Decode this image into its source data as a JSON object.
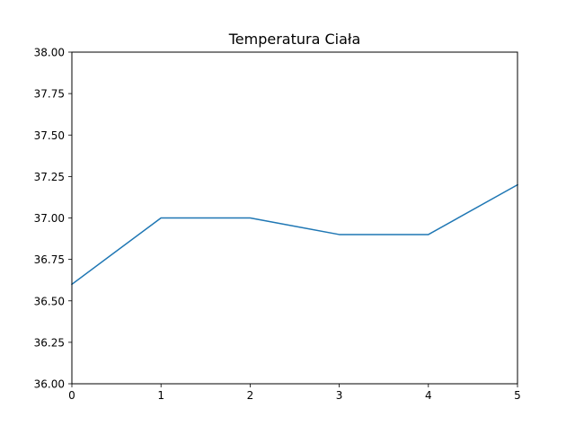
{
  "chart_data": {
    "type": "line",
    "title": "Temperatura Ciała",
    "xlabel": "",
    "ylabel": "",
    "x": [
      0,
      1,
      2,
      3,
      4,
      5
    ],
    "series": [
      {
        "values": [
          36.6,
          37.0,
          37.0,
          36.9,
          36.9,
          37.2
        ],
        "color": "#1f77b4"
      }
    ],
    "xlim": [
      0,
      5
    ],
    "ylim": [
      36.0,
      38.0
    ],
    "xticks": [
      0,
      1,
      2,
      3,
      4,
      5
    ],
    "xtick_labels": [
      "0",
      "1",
      "2",
      "3",
      "4",
      "5"
    ],
    "yticks": [
      36.0,
      36.25,
      36.5,
      36.75,
      37.0,
      37.25,
      37.5,
      37.75,
      38.0
    ],
    "ytick_labels": [
      "36.00",
      "36.25",
      "36.50",
      "36.75",
      "37.00",
      "37.25",
      "37.50",
      "37.75",
      "38.00"
    ],
    "grid": false,
    "legend": "none"
  }
}
